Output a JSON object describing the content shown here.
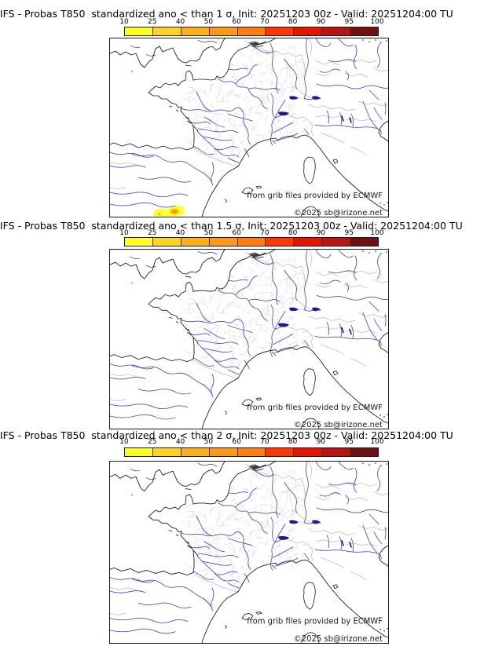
{
  "page": {
    "background": "#ffffff"
  },
  "colorbar": {
    "ticks": [
      "10",
      "25",
      "40",
      "50",
      "60",
      "70",
      "80",
      "90",
      "95",
      "100"
    ],
    "colors": [
      "#ffff1e",
      "#ffd31e",
      "#ffb014",
      "#ff9914",
      "#ff7d0a",
      "#ff3705",
      "#e61400",
      "#b91414",
      "#701012"
    ],
    "unit": "%"
  },
  "map": {
    "credit_line1": "from grib files provided by ECMWF",
    "credit_line2": "©2025 sb@irizone.net",
    "river_color": "#3434dd",
    "coast_color": "#161616",
    "border_color": "#b9b9b9",
    "department_color": "#d8d8d8",
    "anomaly_colors": {
      "outer": "#ffff2e",
      "mid": "#ffd300",
      "core": "#ff8c00"
    }
  },
  "panels": [
    {
      "title": "IFS - Probas T850  standardized ano < than 1 σ, Init: 20251203 00z - Valid: 20251204:00 TU",
      "has_anomaly_blob": true
    },
    {
      "title": "IFS - Probas T850  standardized ano < than 1.5 σ, Init: 20251203 00z - Valid: 20251204:00 TU",
      "has_anomaly_blob": false
    },
    {
      "title": "IFS - Probas T850  standardized ano < than 2 σ, Init: 20251203 00z - Valid: 20251204:00 TU",
      "has_anomaly_blob": false
    }
  ]
}
